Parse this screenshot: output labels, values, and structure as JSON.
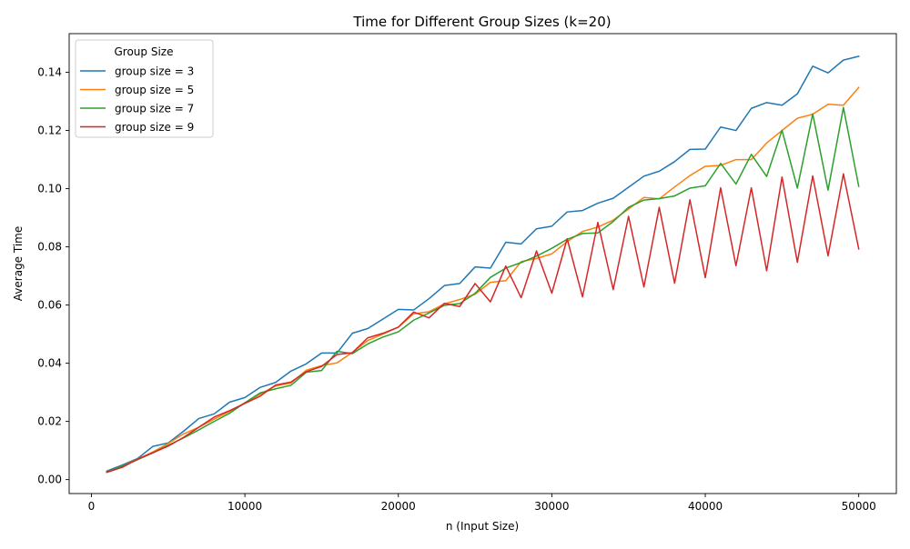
{
  "chart_data": {
    "type": "line",
    "title": "Time for Different Group Sizes (k=20)",
    "xlabel": "n (Input Size)",
    "ylabel": "Average Time",
    "xlim": [
      -1450,
      52450
    ],
    "ylim": [
      -0.0048,
      0.1533
    ],
    "xticks": [
      0,
      10000,
      20000,
      30000,
      40000,
      50000
    ],
    "xtick_labels": [
      "0",
      "10000",
      "20000",
      "30000",
      "40000",
      "50000"
    ],
    "yticks": [
      0.0,
      0.02,
      0.04,
      0.06,
      0.08,
      0.1,
      0.12,
      0.14
    ],
    "ytick_labels": [
      "0.00",
      "0.02",
      "0.04",
      "0.06",
      "0.08",
      "0.10",
      "0.12",
      "0.14"
    ],
    "grid": false,
    "legend": {
      "title": "Group Size",
      "position": "top-left"
    },
    "x": [
      1000,
      2000,
      3000,
      4000,
      5000,
      6000,
      7000,
      8000,
      9000,
      10000,
      11000,
      12000,
      13000,
      14000,
      15000,
      16000,
      17000,
      18000,
      19000,
      20000,
      21000,
      22000,
      23000,
      24000,
      25000,
      26000,
      27000,
      28000,
      29000,
      30000,
      31000,
      32000,
      33000,
      34000,
      35000,
      36000,
      37000,
      38000,
      39000,
      40000,
      41000,
      42000,
      43000,
      44000,
      45000,
      46000,
      47000,
      48000,
      49000,
      50000
    ],
    "series": [
      {
        "name": "group size = 3",
        "color": "#1f77b4",
        "values": [
          0.0029,
          0.005,
          0.0072,
          0.0114,
          0.0126,
          0.0166,
          0.021,
          0.0226,
          0.0266,
          0.0282,
          0.0317,
          0.0334,
          0.0373,
          0.0398,
          0.0435,
          0.0435,
          0.0503,
          0.0519,
          0.0552,
          0.0585,
          0.0583,
          0.0622,
          0.0667,
          0.0674,
          0.0731,
          0.0727,
          0.0816,
          0.081,
          0.0862,
          0.0871,
          0.092,
          0.0925,
          0.095,
          0.0967,
          0.1005,
          0.1043,
          0.106,
          0.1093,
          0.1135,
          0.1136,
          0.1212,
          0.12,
          0.1276,
          0.1296,
          0.1287,
          0.1326,
          0.1421,
          0.1398,
          0.1442,
          0.1455
        ]
      },
      {
        "name": "group size = 5",
        "color": "#ff7f0e",
        "values": [
          0.0026,
          0.0046,
          0.007,
          0.0095,
          0.0124,
          0.0157,
          0.018,
          0.0208,
          0.0234,
          0.0264,
          0.0294,
          0.0322,
          0.0332,
          0.0376,
          0.0392,
          0.0401,
          0.0437,
          0.0478,
          0.05,
          0.0524,
          0.057,
          0.0577,
          0.0604,
          0.0619,
          0.0637,
          0.0678,
          0.0684,
          0.0749,
          0.076,
          0.0776,
          0.0818,
          0.0853,
          0.0868,
          0.0892,
          0.093,
          0.097,
          0.0965,
          0.1006,
          0.1045,
          0.1077,
          0.108,
          0.11,
          0.11,
          0.1157,
          0.12,
          0.1242,
          0.1256,
          0.129,
          0.1287,
          0.1348
        ]
      },
      {
        "name": "group size = 7",
        "color": "#2ca02c",
        "values": [
          0.0026,
          0.0046,
          0.0068,
          0.0092,
          0.0118,
          0.0143,
          0.0171,
          0.02,
          0.0228,
          0.0264,
          0.0298,
          0.0312,
          0.0324,
          0.0369,
          0.0375,
          0.0441,
          0.0433,
          0.0466,
          0.049,
          0.0508,
          0.0548,
          0.0573,
          0.0599,
          0.0605,
          0.064,
          0.0695,
          0.0727,
          0.0746,
          0.0768,
          0.0795,
          0.0826,
          0.0846,
          0.0848,
          0.0887,
          0.0936,
          0.0961,
          0.0966,
          0.0975,
          0.1002,
          0.101,
          0.1087,
          0.1016,
          0.1118,
          0.1042,
          0.1201,
          0.1002,
          0.1257,
          0.0995,
          0.1279,
          0.1008
        ]
      },
      {
        "name": "group size = 9",
        "color": "#d62728",
        "values": [
          0.0025,
          0.0042,
          0.007,
          0.0092,
          0.0115,
          0.0145,
          0.018,
          0.0215,
          0.0237,
          0.0262,
          0.0287,
          0.0325,
          0.0335,
          0.0371,
          0.0389,
          0.043,
          0.0436,
          0.0487,
          0.0503,
          0.0524,
          0.0576,
          0.0556,
          0.0606,
          0.0595,
          0.0674,
          0.0611,
          0.0734,
          0.0625,
          0.0786,
          0.0641,
          0.0828,
          0.0628,
          0.0884,
          0.0653,
          0.0905,
          0.0662,
          0.0936,
          0.0675,
          0.0962,
          0.0694,
          0.1003,
          0.0735,
          0.1003,
          0.0718,
          0.104,
          0.0747,
          0.1044,
          0.0769,
          0.1051,
          0.0793
        ]
      }
    ]
  }
}
